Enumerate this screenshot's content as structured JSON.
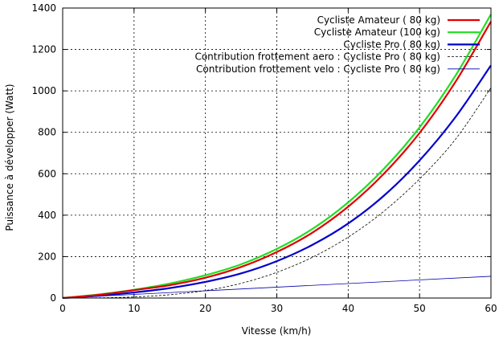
{
  "chart_data": {
    "type": "line",
    "title": "",
    "xlabel": "Vitesse (km/h)",
    "ylabel": "Puissance à développer (Watt)",
    "xlim": [
      0,
      60
    ],
    "ylim": [
      0,
      1400
    ],
    "xticks": [
      0,
      10,
      20,
      30,
      40,
      50,
      60
    ],
    "yticks": [
      0,
      200,
      400,
      600,
      800,
      1000,
      1200,
      1400
    ],
    "grid": true,
    "legend_position": "top-right",
    "series": [
      {
        "name": "Cycliste Amateur ( 80 kg)",
        "color": "#e00000",
        "style": "solid-thick",
        "x": [
          0,
          5,
          10,
          15,
          20,
          25,
          30,
          35,
          40,
          45,
          50,
          55,
          60
        ],
        "y": [
          0,
          15,
          38,
          62,
          98,
          150,
          222,
          316,
          441,
          600,
          797,
          1042,
          1335
        ]
      },
      {
        "name": "Cycliste Amateur (100 kg)",
        "color": "#22dd22",
        "style": "solid-thick",
        "x": [
          0,
          5,
          10,
          15,
          20,
          25,
          30,
          35,
          40,
          45,
          50,
          55,
          60
        ],
        "y": [
          0,
          17,
          40,
          70,
          110,
          163,
          237,
          334,
          462,
          624,
          824,
          1072,
          1370
        ]
      },
      {
        "name": "Cycliste Pro ( 80 kg)",
        "color": "#0000cc",
        "style": "solid-thick",
        "x": [
          0,
          5,
          10,
          15,
          20,
          25,
          30,
          35,
          40,
          45,
          50,
          55,
          60
        ],
        "y": [
          0,
          11,
          27,
          48,
          78,
          119,
          178,
          257,
          360,
          494,
          664,
          872,
          1123
        ]
      },
      {
        "name": "Contribution frottement aero : Cycliste Pro ( 80 kg)",
        "color": "#000000",
        "style": "dashed",
        "x": [
          0,
          5,
          10,
          15,
          20,
          25,
          30,
          35,
          40,
          45,
          50,
          55,
          60
        ],
        "y": [
          0,
          1,
          5,
          16,
          36,
          71,
          124,
          197,
          294,
          419,
          575,
          765,
          1015
        ]
      },
      {
        "name": "Contribution frottement velo : Cycliste Pro ( 80 kg)",
        "color": "#0000aa",
        "style": "solid-thin",
        "x": [
          0,
          60
        ],
        "y": [
          0,
          105
        ]
      }
    ]
  }
}
